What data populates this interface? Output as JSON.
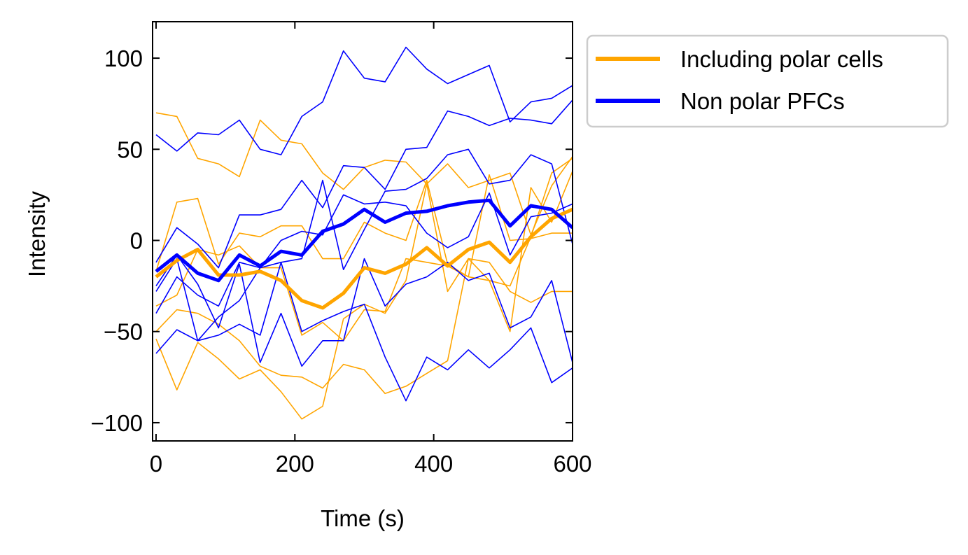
{
  "chart_data": {
    "type": "line",
    "title": "",
    "xlabel": "Time (s)",
    "ylabel": "Intensity",
    "xlim": [
      -5,
      600
    ],
    "ylim": [
      -110,
      120
    ],
    "xticks": [
      0,
      200,
      400,
      600
    ],
    "yticks": [
      -100,
      -50,
      0,
      50,
      100
    ],
    "xtick_labels": [
      "0",
      "200",
      "400",
      "600"
    ],
    "ytick_labels": [
      "−100",
      "−50",
      "0",
      "50",
      "100"
    ],
    "grid": false,
    "legend": {
      "placement": "outside-top-right",
      "entries": [
        {
          "label": "Including polar cells",
          "color": "#FFA500"
        },
        {
          "label": "Non polar PFCs",
          "color": "#0000FF"
        }
      ]
    },
    "x": [
      0,
      30,
      60,
      90,
      120,
      150,
      180,
      210,
      240,
      270,
      300,
      330,
      360,
      390,
      420,
      450,
      480,
      510,
      540,
      570,
      600
    ],
    "series": [
      {
        "name": "Including polar cells",
        "color": "#FFA500",
        "role": "mean",
        "values": [
          -20,
          -11,
          -5,
          -19,
          -19,
          -17,
          -22,
          -33,
          -37,
          -29,
          -15,
          -18,
          -13,
          -4,
          -14,
          -5,
          -1,
          -12,
          2,
          12,
          17
        ]
      },
      {
        "name": "Non polar PFCs",
        "color": "#0000FF",
        "role": "mean",
        "values": [
          -17,
          -8,
          -18,
          -22,
          -8,
          -14,
          -6,
          -8,
          5,
          9,
          17,
          10,
          15,
          16,
          19,
          21,
          22,
          8,
          19,
          17,
          7
        ]
      },
      {
        "color": "#FFA500",
        "role": "individual",
        "values": [
          70,
          68,
          45,
          42,
          35,
          66,
          55,
          53,
          37,
          28,
          40,
          44,
          43,
          31,
          42,
          29,
          33,
          37,
          3,
          30,
          46
        ]
      },
      {
        "color": "#FFA500",
        "role": "individual",
        "values": [
          -17,
          21,
          23,
          -13,
          4,
          2,
          8,
          8,
          -10,
          -10,
          10,
          4,
          0,
          33,
          -13,
          -20,
          36,
          0,
          1,
          4,
          4
        ]
      },
      {
        "color": "#FFA500",
        "role": "individual",
        "values": [
          -50,
          -38,
          -40,
          -46,
          -55,
          -69,
          -74,
          -75,
          -81,
          -68,
          -71,
          -84,
          -80,
          -73,
          -66,
          -10,
          -12,
          -28,
          -34,
          -28,
          -28
        ]
      },
      {
        "color": "#FFA500",
        "role": "individual",
        "values": [
          -54,
          -82,
          -56,
          -65,
          -76,
          -71,
          -83,
          -98,
          -91,
          -43,
          -35,
          -40,
          -22,
          31,
          -28,
          -10,
          -22,
          -50,
          29,
          10,
          38
        ]
      },
      {
        "color": "#FFA500",
        "role": "individual",
        "values": [
          -36,
          -30,
          -5,
          -8,
          -3,
          -15,
          -15,
          -52,
          -45,
          -55,
          -38,
          -39,
          -10,
          -12,
          -14,
          -20,
          -22,
          -25,
          2,
          37,
          45
        ]
      },
      {
        "color": "#0000FF",
        "role": "individual",
        "values": [
          58,
          49,
          59,
          58,
          66,
          50,
          47,
          68,
          76,
          104,
          89,
          87,
          106,
          94,
          86,
          91,
          96,
          65,
          76,
          78,
          85
        ]
      },
      {
        "color": "#0000FF",
        "role": "individual",
        "values": [
          -12,
          7,
          -2,
          -15,
          14,
          14,
          17,
          33,
          18,
          41,
          40,
          28,
          50,
          51,
          71,
          68,
          63,
          67,
          66,
          64,
          77
        ]
      },
      {
        "color": "#0000FF",
        "role": "individual",
        "values": [
          -40,
          -20,
          -30,
          -36,
          -12,
          -15,
          -12,
          -10,
          33,
          -16,
          6,
          27,
          28,
          34,
          47,
          50,
          31,
          33,
          47,
          42,
          -2
        ]
      },
      {
        "color": "#0000FF",
        "role": "individual",
        "values": [
          -62,
          -49,
          -55,
          -52,
          -46,
          -52,
          -12,
          -50,
          -44,
          -39,
          -35,
          -64,
          -88,
          -64,
          -71,
          -60,
          -70,
          -60,
          -48,
          -78,
          -70
        ]
      },
      {
        "color": "#0000FF",
        "role": "individual",
        "values": [
          -25,
          -8,
          -24,
          -48,
          -13,
          -67,
          -40,
          -69,
          -55,
          -55,
          -10,
          -36,
          -24,
          -20,
          -12,
          -22,
          -18,
          -48,
          -42,
          -22,
          -67
        ]
      },
      {
        "color": "#0000FF",
        "role": "individual",
        "values": [
          -28,
          -10,
          -55,
          -42,
          -33,
          -15,
          0,
          5,
          3,
          25,
          20,
          21,
          19,
          4,
          -4,
          2,
          26,
          -8,
          13,
          15,
          20
        ]
      }
    ]
  }
}
